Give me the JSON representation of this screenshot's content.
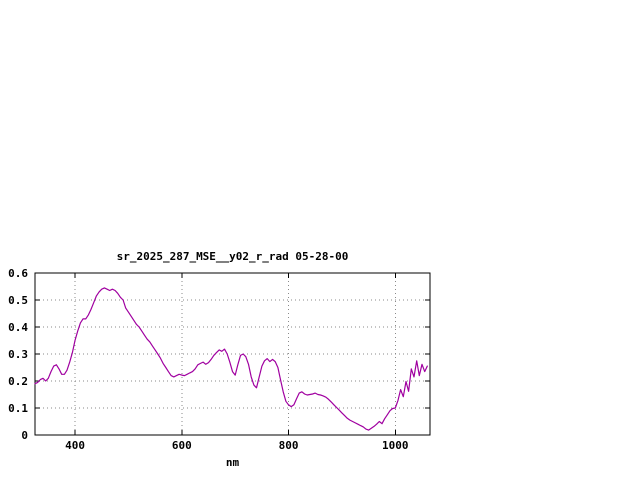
{
  "chart_data": {
    "type": "line",
    "title": "sr_2025_287_MSE__y02_r_rad 05-28-00",
    "xlabel": "nm",
    "ylabel": "",
    "xlim": [
      325,
      1065
    ],
    "ylim": [
      0,
      0.6
    ],
    "xtick_values": [
      400,
      600,
      800,
      1000
    ],
    "xtick_labels": [
      "400",
      "600",
      "800",
      "1000"
    ],
    "ytick_values": [
      0,
      0.1,
      0.2,
      0.3,
      0.4,
      0.5,
      0.6
    ],
    "ytick_labels": [
      "0",
      "0.1",
      "0.2",
      "0.3",
      "0.4",
      "0.5",
      "0.6"
    ],
    "grid": true,
    "legend": "none",
    "line_color": "#a000a0",
    "series": [
      {
        "x": [
          325,
          330,
          335,
          340,
          345,
          350,
          355,
          360,
          365,
          370,
          375,
          380,
          385,
          390,
          395,
          400,
          405,
          410,
          415,
          420,
          425,
          430,
          435,
          440,
          445,
          450,
          455,
          460,
          465,
          470,
          475,
          480,
          485,
          490,
          495,
          500,
          505,
          510,
          515,
          520,
          525,
          530,
          535,
          540,
          545,
          550,
          555,
          560,
          565,
          570,
          575,
          580,
          585,
          590,
          595,
          600,
          605,
          610,
          615,
          620,
          625,
          630,
          635,
          640,
          645,
          650,
          655,
          660,
          665,
          670,
          675,
          680,
          685,
          690,
          695,
          700,
          705,
          710,
          715,
          720,
          725,
          730,
          735,
          740,
          745,
          750,
          755,
          760,
          765,
          770,
          775,
          780,
          785,
          790,
          795,
          800,
          805,
          810,
          815,
          820,
          825,
          830,
          835,
          840,
          845,
          850,
          855,
          860,
          865,
          870,
          875,
          880,
          885,
          890,
          895,
          900,
          905,
          910,
          915,
          920,
          925,
          930,
          935,
          940,
          945,
          950,
          955,
          960,
          965,
          970,
          975,
          980,
          985,
          990,
          995,
          1000,
          1005,
          1010,
          1015,
          1020,
          1025,
          1030,
          1035,
          1040,
          1045,
          1050,
          1055,
          1060
        ],
        "y": [
          0.19,
          0.195,
          0.205,
          0.21,
          0.2,
          0.21,
          0.235,
          0.255,
          0.26,
          0.245,
          0.225,
          0.225,
          0.24,
          0.27,
          0.305,
          0.35,
          0.385,
          0.415,
          0.43,
          0.43,
          0.445,
          0.465,
          0.49,
          0.515,
          0.53,
          0.54,
          0.545,
          0.54,
          0.535,
          0.54,
          0.535,
          0.525,
          0.51,
          0.5,
          0.47,
          0.455,
          0.44,
          0.425,
          0.41,
          0.4,
          0.385,
          0.37,
          0.355,
          0.345,
          0.33,
          0.315,
          0.3,
          0.285,
          0.265,
          0.25,
          0.235,
          0.22,
          0.215,
          0.22,
          0.225,
          0.222,
          0.22,
          0.225,
          0.23,
          0.235,
          0.245,
          0.26,
          0.265,
          0.27,
          0.262,
          0.268,
          0.28,
          0.295,
          0.305,
          0.315,
          0.31,
          0.318,
          0.3,
          0.27,
          0.235,
          0.222,
          0.26,
          0.295,
          0.3,
          0.29,
          0.262,
          0.215,
          0.185,
          0.175,
          0.215,
          0.255,
          0.275,
          0.283,
          0.272,
          0.28,
          0.272,
          0.25,
          0.205,
          0.16,
          0.125,
          0.112,
          0.105,
          0.112,
          0.135,
          0.155,
          0.16,
          0.152,
          0.148,
          0.15,
          0.152,
          0.155,
          0.15,
          0.148,
          0.145,
          0.14,
          0.132,
          0.122,
          0.112,
          0.102,
          0.092,
          0.082,
          0.072,
          0.062,
          0.055,
          0.05,
          0.045,
          0.04,
          0.035,
          0.03,
          0.022,
          0.018,
          0.025,
          0.032,
          0.04,
          0.05,
          0.042,
          0.06,
          0.075,
          0.09,
          0.098,
          0.1,
          0.128,
          0.168,
          0.142,
          0.198,
          0.162,
          0.245,
          0.215,
          0.275,
          0.22,
          0.262,
          0.235,
          0.255
        ]
      }
    ]
  }
}
